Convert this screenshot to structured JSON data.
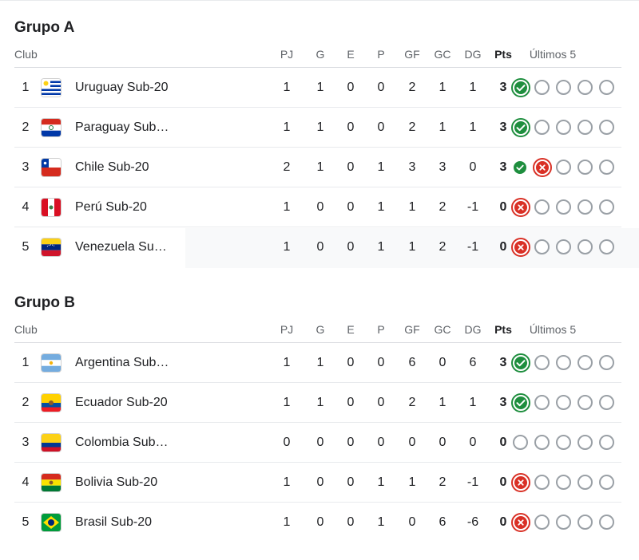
{
  "headers": {
    "club": "Club",
    "pj": "PJ",
    "g": "G",
    "e": "E",
    "p": "P",
    "gf": "GF",
    "gc": "GC",
    "dg": "DG",
    "pts": "Pts",
    "last5": "Últimos 5"
  },
  "groups": [
    {
      "title": "Grupo A",
      "rows": [
        {
          "rank": "1",
          "team": "Uruguay Sub-20",
          "flag": "uruguay-flag",
          "pj": "1",
          "g": "1",
          "e": "0",
          "p": "0",
          "gf": "2",
          "gc": "1",
          "dg": "1",
          "pts": "3",
          "last5": [
            "win",
            "empty",
            "empty",
            "empty",
            "empty"
          ]
        },
        {
          "rank": "2",
          "team": "Paraguay Sub…",
          "flag": "paraguay-flag",
          "pj": "1",
          "g": "1",
          "e": "0",
          "p": "0",
          "gf": "2",
          "gc": "1",
          "dg": "1",
          "pts": "3",
          "last5": [
            "win",
            "empty",
            "empty",
            "empty",
            "empty"
          ]
        },
        {
          "rank": "3",
          "team": "Chile Sub-20",
          "flag": "chile-flag",
          "pj": "2",
          "g": "1",
          "e": "0",
          "p": "1",
          "gf": "3",
          "gc": "3",
          "dg": "0",
          "pts": "3",
          "last5": [
            "win-small",
            "loss",
            "empty",
            "empty",
            "empty"
          ]
        },
        {
          "rank": "4",
          "team": "Perú Sub-20",
          "flag": "peru-flag",
          "pj": "1",
          "g": "0",
          "e": "0",
          "p": "1",
          "gf": "1",
          "gc": "2",
          "dg": "-1",
          "pts": "0",
          "last5": [
            "loss",
            "empty",
            "empty",
            "empty",
            "empty"
          ]
        },
        {
          "rank": "5",
          "team": "Venezuela Su…",
          "flag": "venezuela-flag",
          "pj": "1",
          "g": "0",
          "e": "0",
          "p": "1",
          "gf": "1",
          "gc": "2",
          "dg": "-1",
          "pts": "0",
          "last5": [
            "loss",
            "empty",
            "empty",
            "empty",
            "empty"
          ]
        }
      ]
    },
    {
      "title": "Grupo B",
      "rows": [
        {
          "rank": "1",
          "team": "Argentina Sub…",
          "flag": "argentina-flag",
          "pj": "1",
          "g": "1",
          "e": "0",
          "p": "0",
          "gf": "6",
          "gc": "0",
          "dg": "6",
          "pts": "3",
          "last5": [
            "win",
            "empty",
            "empty",
            "empty",
            "empty"
          ]
        },
        {
          "rank": "2",
          "team": "Ecuador Sub-20",
          "flag": "ecuador-flag",
          "pj": "1",
          "g": "1",
          "e": "0",
          "p": "0",
          "gf": "2",
          "gc": "1",
          "dg": "1",
          "pts": "3",
          "last5": [
            "win",
            "empty",
            "empty",
            "empty",
            "empty"
          ]
        },
        {
          "rank": "3",
          "team": "Colombia Sub…",
          "flag": "colombia-flag",
          "pj": "0",
          "g": "0",
          "e": "0",
          "p": "0",
          "gf": "0",
          "gc": "0",
          "dg": "0",
          "pts": "0",
          "last5": [
            "empty",
            "empty",
            "empty",
            "empty",
            "empty"
          ]
        },
        {
          "rank": "4",
          "team": "Bolivia Sub-20",
          "flag": "bolivia-flag",
          "pj": "1",
          "g": "0",
          "e": "0",
          "p": "1",
          "gf": "1",
          "gc": "2",
          "dg": "-1",
          "pts": "0",
          "last5": [
            "loss",
            "empty",
            "empty",
            "empty",
            "empty"
          ]
        },
        {
          "rank": "5",
          "team": "Brasil Sub-20",
          "flag": "brazil-flag",
          "pj": "1",
          "g": "0",
          "e": "0",
          "p": "1",
          "gf": "0",
          "gc": "6",
          "dg": "-6",
          "pts": "0",
          "last5": [
            "loss",
            "empty",
            "empty",
            "empty",
            "empty"
          ]
        }
      ]
    }
  ]
}
